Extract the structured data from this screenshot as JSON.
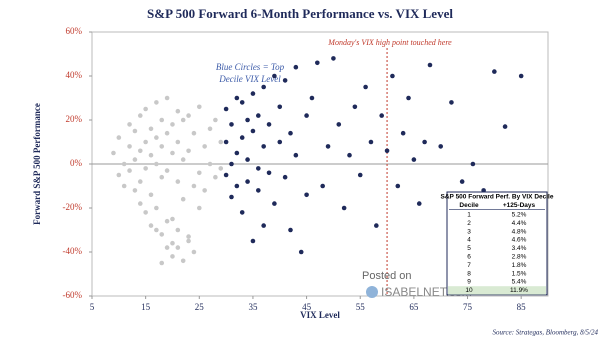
{
  "chart_data": {
    "type": "scatter",
    "title": "S&P 500 Forward 6-Month Performance vs. VIX Level",
    "x_label": "VIX Level",
    "y_label": "Forward S&P 500 Performance",
    "annotations": [
      "Monday's VIX high point touched here",
      "Blue Circles = Top",
      "Decile VIX Level"
    ],
    "reference_x": 60,
    "source": "Source: Strategas, Bloomberg, 8/5/24",
    "watermark": [
      "Posted on",
      "ISABELNET.com"
    ],
    "xlim": [
      5,
      90
    ],
    "xticks": [
      5,
      15,
      25,
      35,
      45,
      55,
      65,
      75,
      85
    ],
    "ylim": [
      -60,
      60
    ],
    "yticks": [
      {
        "value": -60,
        "label": "-60%"
      },
      {
        "value": -40,
        "label": "-40%"
      },
      {
        "value": -20,
        "label": "-20%"
      },
      {
        "value": 0,
        "label": "0%"
      },
      {
        "value": 20,
        "label": "20%"
      },
      {
        "value": 40,
        "label": "40%"
      },
      {
        "value": 60,
        "label": "60%"
      }
    ],
    "series": [
      {
        "color": "#c8c8c8",
        "x": [
          9,
          10,
          10,
          11,
          11,
          12,
          12,
          12,
          13,
          13,
          13,
          14,
          14,
          14,
          14,
          15,
          15,
          15,
          15,
          16,
          16,
          16,
          16,
          17,
          17,
          17,
          17,
          18,
          18,
          18,
          18,
          19,
          19,
          19,
          19,
          20,
          20,
          20,
          20,
          21,
          21,
          21,
          21,
          22,
          22,
          22,
          23,
          23,
          23,
          24,
          24,
          24,
          25,
          25,
          25,
          26,
          26,
          27,
          27,
          28,
          28,
          29,
          29,
          18,
          20,
          22,
          19,
          21,
          17,
          23
        ],
        "values": [
          5,
          -5,
          12,
          0,
          -10,
          8,
          -3,
          18,
          2,
          -12,
          15,
          6,
          -8,
          22,
          -18,
          10,
          -2,
          25,
          -22,
          4,
          -14,
          16,
          -28,
          0,
          12,
          -20,
          28,
          -6,
          20,
          -32,
          8,
          -3,
          14,
          -38,
          30,
          5,
          -25,
          18,
          -42,
          -8,
          10,
          -30,
          24,
          2,
          -16,
          20,
          -35,
          6,
          22,
          -10,
          -40,
          14,
          -4,
          26,
          -20,
          8,
          -12,
          16,
          0,
          -6,
          20,
          10,
          -2,
          -45,
          -36,
          -44,
          -26,
          -38,
          -30,
          -33
        ]
      },
      {
        "color": "#1f2a5a",
        "x": [
          30,
          30,
          30,
          31,
          31,
          31,
          32,
          32,
          32,
          33,
          33,
          33,
          34,
          34,
          34,
          35,
          35,
          35,
          36,
          36,
          36,
          37,
          37,
          37,
          38,
          38,
          39,
          39,
          40,
          40,
          41,
          41,
          42,
          42,
          43,
          43,
          44,
          45,
          45,
          46,
          47,
          48,
          49,
          50,
          51,
          52,
          53,
          54,
          55,
          56,
          57,
          58,
          59,
          60,
          61,
          62,
          63,
          64,
          65,
          66,
          67,
          68,
          70,
          72,
          74,
          76,
          78,
          80,
          82,
          85
        ],
        "values": [
          10,
          -5,
          25,
          0,
          18,
          -15,
          30,
          5,
          -10,
          -22,
          12,
          28,
          2,
          -8,
          20,
          -35,
          15,
          32,
          -2,
          22,
          -12,
          8,
          35,
          -28,
          -4,
          18,
          40,
          -18,
          10,
          26,
          -6,
          38,
          14,
          -30,
          4,
          44,
          -40,
          22,
          -14,
          30,
          46,
          -10,
          8,
          48,
          18,
          -20,
          4,
          26,
          -5,
          35,
          10,
          -28,
          22,
          6,
          40,
          -10,
          14,
          30,
          2,
          -18,
          10,
          45,
          8,
          28,
          -8,
          0,
          -12,
          42,
          17,
          40
        ]
      }
    ],
    "table": {
      "title": "S&P 500 Forward Perf. By VIX Decile",
      "header": [
        "Decile",
        "+125-Days"
      ],
      "rows": [
        [
          "1",
          "5.2%"
        ],
        [
          "2",
          "4.4%"
        ],
        [
          "3",
          "4.8%"
        ],
        [
          "4",
          "4.6%"
        ],
        [
          "5",
          "3.4%"
        ],
        [
          "6",
          "2.8%"
        ],
        [
          "7",
          "1.8%"
        ],
        [
          "8",
          "1.5%"
        ],
        [
          "9",
          "5.4%"
        ],
        [
          "10",
          "11.9%"
        ]
      ]
    }
  }
}
